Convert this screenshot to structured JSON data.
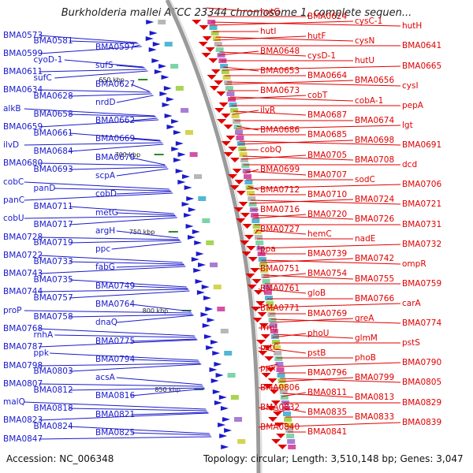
{
  "title": "Burkholderia mallei ATCC 23344 chromosome 1, complete sequen...",
  "footer": {
    "accession": "Accession: NC_006348",
    "summary": "Topology: circular; Length: 3,510,148 bp; Genes: 3,047"
  },
  "colors": {
    "forward_strand": "#1a1acc",
    "reverse_strand": "#e00000",
    "backbone": "#999999",
    "tick": "#2a8a2a"
  },
  "ticks": [
    "650 kbp",
    "700 kbp",
    "750 kbp",
    "800 kbp",
    "850 kbp"
  ],
  "left_labels": [
    "BMA0573",
    "BMA0581",
    "BMA0597",
    "BMA0599",
    "cyoD-1",
    "sufS",
    "BMA0611",
    "sufC",
    "BMA0627",
    "BMA0634",
    "BMA0628",
    "nrdD",
    "alkB",
    "BMA0658",
    "BMA0662",
    "BMA0659",
    "BMA0661",
    "BMA0669",
    "ilvD",
    "BMA0684",
    "BMA0670",
    "BMA0680",
    "BMA0693",
    "scpA",
    "cobC",
    "panD",
    "cobD",
    "panC",
    "BMA0711",
    "metG",
    "cobU",
    "BMA0717",
    "argH",
    "BMA0728",
    "BMA0719",
    "ppc",
    "BMA0722",
    "BMA0733",
    "fabG",
    "BMA0743",
    "BMA0735",
    "BMA0749",
    "BMA0744",
    "BMA0757",
    "BMA0764",
    "proP",
    "BMA0758",
    "dnaQ",
    "BMA0768",
    "rnhA",
    "BMA0775",
    "BMA0787",
    "ppk",
    "BMA0794",
    "BMA0798",
    "BMA0803",
    "acsA",
    "BMA0807",
    "BMA0812",
    "BMA0816",
    "malQ",
    "BMA0818",
    "BMA0821",
    "BMA0823",
    "BMA0824",
    "BMA0825",
    "BMA0847"
  ],
  "right_labels": [
    "hutG",
    "BMA0624",
    "cysC-1",
    "hutH",
    "hutI",
    "hutF",
    "cysN",
    "BMA0641",
    "BMA0648",
    "cysD-1",
    "hutU",
    "BMA0665",
    "BMA0653",
    "BMA0664",
    "BMA0656",
    "cysI",
    "BMA0673",
    "cobT",
    "cobA-1",
    "pepA",
    "ilvR",
    "BMA0687",
    "BMA0674",
    "lgt",
    "BMA0686",
    "BMA0685",
    "BMA0698",
    "BMA0691",
    "cobQ",
    "BMA0705",
    "BMA0708",
    "dcd",
    "BMA0699",
    "BMA0707",
    "sodC",
    "BMA0706",
    "BMA0712",
    "BMA0710",
    "BMA0724",
    "BMA0721",
    "BMA0716",
    "BMA0720",
    "BMA0726",
    "BMA0731",
    "BMA0727",
    "hemC",
    "nadE",
    "BMA0732",
    "ppa",
    "BMA0739",
    "BMA0742",
    "ompR",
    "BMA0751",
    "BMA0754",
    "BMA0755",
    "BMA0759",
    "BMA0761",
    "gloB",
    "BMA0766",
    "carA",
    "BMA0771",
    "BMA0769",
    "greA",
    "BMA0774",
    "rrmJ",
    "phoU",
    "glmM",
    "pstS",
    "pstC",
    "pstB",
    "phoB",
    "BMA0790",
    "ppx",
    "BMA0796",
    "BMA0799",
    "BMA0805",
    "BMA0806",
    "BMA0811",
    "BMA0813",
    "BMA0829",
    "BMA0832",
    "BMA0835",
    "BMA0833",
    "BMA0839",
    "BMA0840",
    "BMA0841"
  ]
}
